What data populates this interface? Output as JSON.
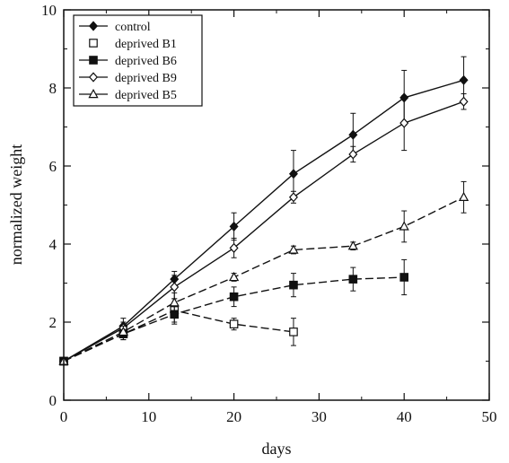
{
  "chart_data": {
    "type": "line",
    "title": "",
    "xlabel": "days",
    "ylabel": "normalized weight",
    "xlim": [
      0,
      50
    ],
    "ylim": [
      0,
      10
    ],
    "xticks": [
      0,
      10,
      20,
      30,
      40,
      50
    ],
    "yticks": [
      0,
      2,
      4,
      6,
      8,
      10
    ],
    "x_tick_labels": [
      "0",
      "10",
      "20",
      "30",
      "40",
      "50"
    ],
    "y_tick_labels": [
      "0",
      "2",
      "4",
      "6",
      "8",
      "10"
    ],
    "grid": false,
    "legend_position": "top-left",
    "series": [
      {
        "name": "control",
        "marker": "filled-diamond",
        "line": "solid",
        "points": [
          {
            "x": 0,
            "y": 1.0,
            "err": 0.05
          },
          {
            "x": 7,
            "y": 1.9,
            "err": 0.2
          },
          {
            "x": 13,
            "y": 3.1,
            "err": 0.2
          },
          {
            "x": 20,
            "y": 4.45,
            "err": 0.35
          },
          {
            "x": 27,
            "y": 5.8,
            "err": 0.6
          },
          {
            "x": 34,
            "y": 6.8,
            "err": 0.55
          },
          {
            "x": 40,
            "y": 7.75,
            "err": 0.7
          },
          {
            "x": 47,
            "y": 8.2,
            "err": 0.6
          }
        ]
      },
      {
        "name": "deprived B1",
        "marker": "open-square",
        "line": "dashed",
        "points": [
          {
            "x": 0,
            "y": 1.0,
            "err": 0.05
          },
          {
            "x": 7,
            "y": 1.7,
            "err": 0.15
          },
          {
            "x": 13,
            "y": 2.3,
            "err": 0.3
          },
          {
            "x": 20,
            "y": 1.95,
            "err": 0.15
          },
          {
            "x": 27,
            "y": 1.75,
            "err": 0.35
          }
        ]
      },
      {
        "name": "deprived B6",
        "marker": "filled-square",
        "line": "dashed",
        "points": [
          {
            "x": 0,
            "y": 1.0,
            "err": 0.05
          },
          {
            "x": 7,
            "y": 1.7,
            "err": 0.15
          },
          {
            "x": 13,
            "y": 2.2,
            "err": 0.25
          },
          {
            "x": 20,
            "y": 2.65,
            "err": 0.25
          },
          {
            "x": 27,
            "y": 2.95,
            "err": 0.3
          },
          {
            "x": 34,
            "y": 3.1,
            "err": 0.3
          },
          {
            "x": 40,
            "y": 3.15,
            "err": 0.45
          }
        ]
      },
      {
        "name": "deprived B9",
        "marker": "open-diamond",
        "line": "solid",
        "points": [
          {
            "x": 0,
            "y": 1.0,
            "err": 0.05
          },
          {
            "x": 7,
            "y": 1.85,
            "err": 0.15
          },
          {
            "x": 13,
            "y": 2.9,
            "err": 0.3
          },
          {
            "x": 20,
            "y": 3.9,
            "err": 0.25
          },
          {
            "x": 27,
            "y": 5.2,
            "err": 0.15
          },
          {
            "x": 34,
            "y": 6.3,
            "err": 0.2
          },
          {
            "x": 40,
            "y": 7.1,
            "err": 0.7
          },
          {
            "x": 47,
            "y": 7.65,
            "err": 0.2
          }
        ]
      },
      {
        "name": "deprived B5",
        "marker": "open-triangle",
        "line": "dashed",
        "points": [
          {
            "x": 0,
            "y": 1.0,
            "err": 0.05
          },
          {
            "x": 7,
            "y": 1.75,
            "err": 0.15
          },
          {
            "x": 13,
            "y": 2.5,
            "err": 0.25
          },
          {
            "x": 20,
            "y": 3.15,
            "err": 0.1
          },
          {
            "x": 27,
            "y": 3.85,
            "err": 0.1
          },
          {
            "x": 34,
            "y": 3.95,
            "err": 0.1
          },
          {
            "x": 40,
            "y": 4.45,
            "err": 0.4
          },
          {
            "x": 47,
            "y": 5.2,
            "err": 0.4
          }
        ]
      }
    ]
  }
}
